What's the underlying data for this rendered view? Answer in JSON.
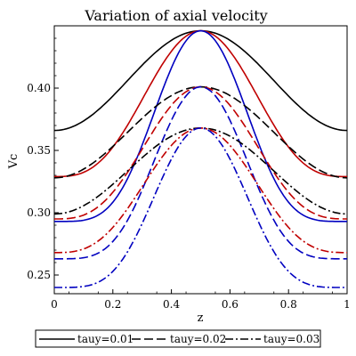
{
  "chart_data": {
    "type": "line",
    "title": "Variation of axial velocity",
    "xlabel": "z",
    "ylabel": "Vc",
    "xlim": [
      0,
      1
    ],
    "ylim": [
      0.235,
      0.45
    ],
    "xticks": [
      "0",
      "0.2",
      "0.4",
      "0.6",
      "0.8",
      "1"
    ],
    "yticks": [
      "0.25",
      "0.30",
      "0.35",
      "0.40"
    ],
    "grid": false,
    "legend_position": "bottom",
    "legend": [
      {
        "label": "tauy=0.01",
        "style": "solid"
      },
      {
        "label": "tauy=0.02",
        "style": "dash"
      },
      {
        "label": "tauy=0.03",
        "style": "dashdot"
      }
    ],
    "colors": {
      "black": "#000000",
      "red": "#c00000",
      "blue": "#0000c0"
    },
    "series": [
      {
        "color": "black",
        "style": "solid",
        "min": 0.366,
        "max": 0.446,
        "width": 0.5
      },
      {
        "color": "red",
        "style": "solid",
        "min": 0.329,
        "max": 0.446,
        "width": 0.38
      },
      {
        "color": "blue",
        "style": "solid",
        "min": 0.293,
        "max": 0.446,
        "width": 0.29
      },
      {
        "color": "black",
        "style": "dash",
        "min": 0.328,
        "max": 0.401,
        "width": 0.5
      },
      {
        "color": "red",
        "style": "dash",
        "min": 0.295,
        "max": 0.401,
        "width": 0.38
      },
      {
        "color": "blue",
        "style": "dash",
        "min": 0.263,
        "max": 0.401,
        "width": 0.29
      },
      {
        "color": "black",
        "style": "dashdot",
        "min": 0.299,
        "max": 0.368,
        "width": 0.5
      },
      {
        "color": "red",
        "style": "dashdot",
        "min": 0.268,
        "max": 0.368,
        "width": 0.38
      },
      {
        "color": "blue",
        "style": "dashdot",
        "min": 0.24,
        "max": 0.368,
        "width": 0.29
      }
    ]
  }
}
